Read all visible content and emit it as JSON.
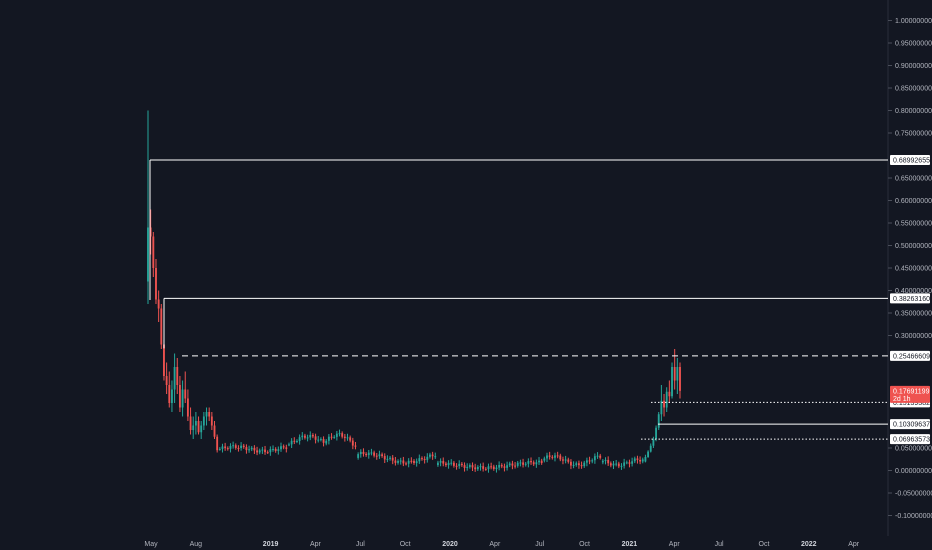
{
  "chart_data": {
    "type": "candlestick",
    "ylim": [
      -0.12,
      1.02
    ],
    "y_ticks": [
      {
        "v": 1.0,
        "label": "1.00000000"
      },
      {
        "v": 0.95,
        "label": "0.95000000"
      },
      {
        "v": 0.9,
        "label": "0.90000000"
      },
      {
        "v": 0.85,
        "label": "0.85000000"
      },
      {
        "v": 0.8,
        "label": "0.80000000"
      },
      {
        "v": 0.75,
        "label": "0.75000000"
      },
      {
        "v": 0.65,
        "label": "0.65000000"
      },
      {
        "v": 0.6,
        "label": "0.60000000"
      },
      {
        "v": 0.55,
        "label": "0.55000000"
      },
      {
        "v": 0.5,
        "label": "0.50000000"
      },
      {
        "v": 0.45,
        "label": "0.45000000"
      },
      {
        "v": 0.4,
        "label": "0.40000000"
      },
      {
        "v": 0.35,
        "label": "0.35000000"
      },
      {
        "v": 0.3,
        "label": "0.30000000"
      },
      {
        "v": 0.05,
        "label": "0.05000000"
      },
      {
        "v": 0.0,
        "label": "0.00000000"
      },
      {
        "v": -0.05,
        "label": "-0.05000000"
      },
      {
        "v": -0.1,
        "label": "-0.10000000"
      }
    ],
    "x_labels": [
      {
        "label": "May",
        "year": false
      },
      {
        "label": "Aug",
        "year": false
      },
      {
        "label": "2019",
        "year": true
      },
      {
        "label": "Apr",
        "year": false
      },
      {
        "label": "Jul",
        "year": false
      },
      {
        "label": "Oct",
        "year": false
      },
      {
        "label": "2020",
        "year": true
      },
      {
        "label": "Apr",
        "year": false
      },
      {
        "label": "Jul",
        "year": false
      },
      {
        "label": "Oct",
        "year": false
      },
      {
        "label": "2021",
        "year": true
      },
      {
        "label": "Apr",
        "year": false
      },
      {
        "label": "Jul",
        "year": false
      },
      {
        "label": "Oct",
        "year": false
      },
      {
        "label": "2022",
        "year": true
      },
      {
        "label": "Apr",
        "year": false
      }
    ],
    "levels": [
      {
        "value": 0.68992655,
        "label": "0.68992655",
        "style": "solid"
      },
      {
        "value": 0.3826316,
        "label": "0.38263160",
        "style": "solid"
      },
      {
        "value": 0.25466609,
        "label": "0.25466609",
        "style": "dashed"
      },
      {
        "value": 0.15139382,
        "label": "0.15139382",
        "style": "dotted"
      },
      {
        "value": 0.10309637,
        "label": "0.10309637",
        "style": "solid"
      },
      {
        "value": 0.06963573,
        "label": "0.06963573",
        "style": "dotted"
      }
    ],
    "current_price": {
      "value": 0.17691199,
      "label": "0.17691199",
      "countdown": "2d 1h"
    },
    "colors": {
      "up": "#26a69a",
      "down": "#ef5350",
      "background": "#131722",
      "axis_text": "#b2b5be",
      "level_line": "#ffffff"
    }
  }
}
